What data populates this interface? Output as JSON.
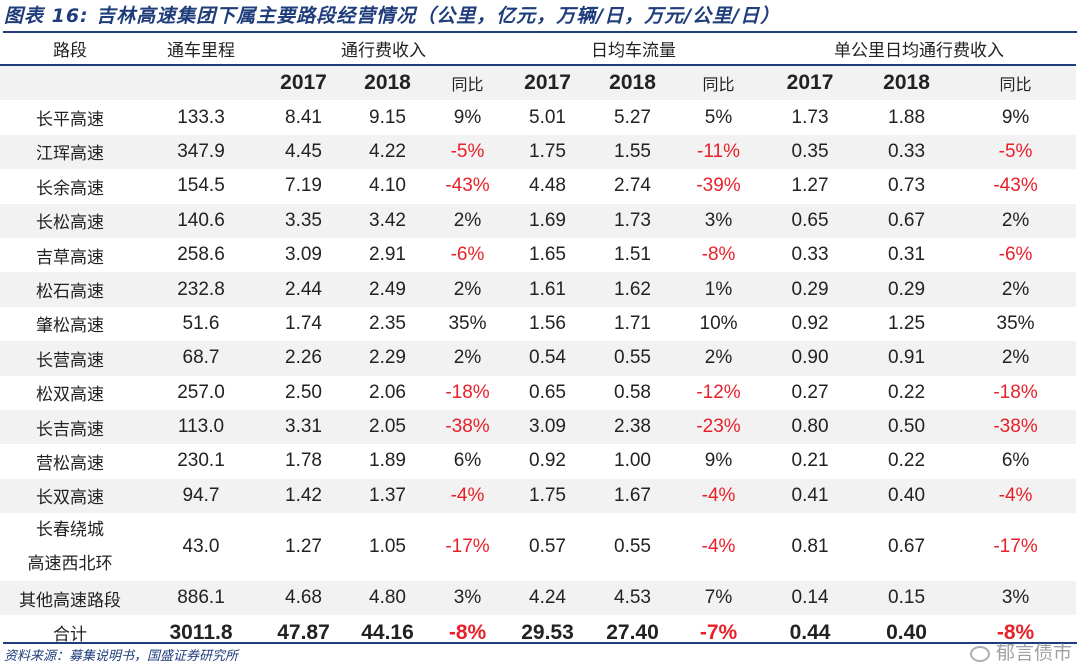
{
  "title": "图表 16:  吉林高速集团下属主要路段经营情况（公里，亿元，万辆/日，万元/公里/日）",
  "header": {
    "road": "路段",
    "mileage": "通车里程",
    "groups": [
      "通行费收入",
      "日均车流量",
      "单公里日均通行费收入"
    ],
    "sub": [
      "2017",
      "2018",
      "同比",
      "2017",
      "2018",
      "同比",
      "2017",
      "2018",
      "同比"
    ]
  },
  "rows": [
    [
      "长平高速",
      "133.3",
      "8.41",
      "9.15",
      "9%",
      "5.01",
      "5.27",
      "5%",
      "1.73",
      "1.88",
      "9%"
    ],
    [
      "江珲高速",
      "347.9",
      "4.45",
      "4.22",
      "-5%",
      "1.75",
      "1.55",
      "-11%",
      "0.35",
      "0.33",
      "-5%"
    ],
    [
      "长余高速",
      "154.5",
      "7.19",
      "4.10",
      "-43%",
      "4.48",
      "2.74",
      "-39%",
      "1.27",
      "0.73",
      "-43%"
    ],
    [
      "长松高速",
      "140.6",
      "3.35",
      "3.42",
      "2%",
      "1.69",
      "1.73",
      "3%",
      "0.65",
      "0.67",
      "2%"
    ],
    [
      "吉草高速",
      "258.6",
      "3.09",
      "2.91",
      "-6%",
      "1.65",
      "1.51",
      "-8%",
      "0.33",
      "0.31",
      "-6%"
    ],
    [
      "松石高速",
      "232.8",
      "2.44",
      "2.49",
      "2%",
      "1.61",
      "1.62",
      "1%",
      "0.29",
      "0.29",
      "2%"
    ],
    [
      "肇松高速",
      "51.6",
      "1.74",
      "2.35",
      "35%",
      "1.56",
      "1.71",
      "10%",
      "0.92",
      "1.25",
      "35%"
    ],
    [
      "长营高速",
      "68.7",
      "2.26",
      "2.29",
      "2%",
      "0.54",
      "0.55",
      "2%",
      "0.90",
      "0.91",
      "2%"
    ],
    [
      "松双高速",
      "257.0",
      "2.50",
      "2.06",
      "-18%",
      "0.65",
      "0.58",
      "-12%",
      "0.27",
      "0.22",
      "-18%"
    ],
    [
      "长吉高速",
      "113.0",
      "3.31",
      "2.05",
      "-38%",
      "3.09",
      "2.38",
      "-23%",
      "0.80",
      "0.50",
      "-38%"
    ],
    [
      "营松高速",
      "230.1",
      "1.78",
      "1.89",
      "6%",
      "0.92",
      "1.00",
      "9%",
      "0.21",
      "0.22",
      "6%"
    ],
    [
      "长双高速",
      "94.7",
      "1.42",
      "1.37",
      "-4%",
      "1.75",
      "1.67",
      "-4%",
      "0.41",
      "0.40",
      "-4%"
    ],
    [
      "长春绕城高速西北环",
      "43.0",
      "1.27",
      "1.05",
      "-17%",
      "0.57",
      "0.55",
      "-4%",
      "0.81",
      "0.67",
      "-17%"
    ],
    [
      "其他高速路段",
      "886.1",
      "4.68",
      "4.80",
      "3%",
      "4.24",
      "4.53",
      "7%",
      "0.14",
      "0.15",
      "3%"
    ]
  ],
  "total": [
    "合计",
    "3011.8",
    "47.87",
    "44.16",
    "-8%",
    "29.53",
    "27.40",
    "-7%",
    "0.44",
    "0.40",
    "-8%"
  ],
  "source": "资料来源：募集说明书，国盛证券研究所",
  "watermark": "郁言债市",
  "colors": {
    "accent": "#1f3d7a",
    "negative": "#e8202a",
    "stripe": "#f2f2f2"
  }
}
